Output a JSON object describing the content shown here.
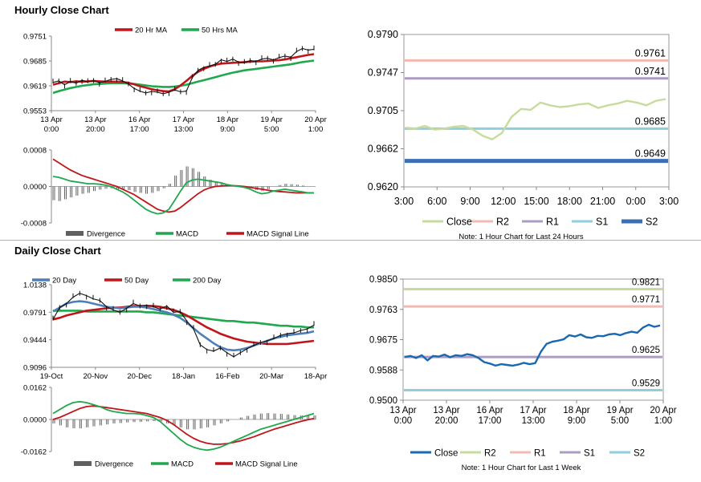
{
  "sections": {
    "hourly_title": "Hourly Close Chart",
    "daily_title": "Daily Close Chart"
  },
  "chart_data": [
    {
      "id": "hourly-price",
      "type": "line",
      "title": "Hourly Close Chart",
      "ylim": [
        0.9553,
        0.9751
      ],
      "yticks": [
        "0.9751",
        "0.9685",
        "0.9619",
        "0.9553"
      ],
      "xticks": [
        [
          "13 Apr",
          "0:00"
        ],
        [
          "13 Apr",
          "20:00"
        ],
        [
          "16 Apr",
          "17:00"
        ],
        [
          "17 Apr",
          "13:00"
        ],
        [
          "18 Apr",
          "9:00"
        ],
        [
          "19 Apr",
          "5:00"
        ],
        [
          "20 Apr",
          "1:00"
        ]
      ],
      "legend": [
        "20 Hr MA",
        "50 Hrs MA"
      ],
      "colors": {
        "price": "#111111",
        "ma20": "#c0161a",
        "ma50": "#21a84f"
      },
      "series": [
        {
          "name": "Price",
          "values": [
            0.9628,
            0.9632,
            0.9622,
            0.963,
            0.9626,
            0.9634,
            0.9629,
            0.9633,
            0.9627,
            0.9631,
            0.9636,
            0.9638,
            0.9632,
            0.9624,
            0.9612,
            0.9605,
            0.96,
            0.9604,
            0.9602,
            0.9598,
            0.9602,
            0.9608,
            0.9603,
            0.9605,
            0.964,
            0.966,
            0.9668,
            0.9672,
            0.9676,
            0.9688,
            0.9684,
            0.969,
            0.9682,
            0.968,
            0.9686,
            0.9684,
            0.969,
            0.9692,
            0.9688,
            0.9694,
            0.9698,
            0.9695,
            0.971,
            0.9718,
            0.9714,
            0.9716
          ]
        },
        {
          "name": "20 Hr MA",
          "values": [
            0.9622,
            0.9626,
            0.963,
            0.9629,
            0.9631,
            0.963,
            0.9631,
            0.9632,
            0.9631,
            0.963,
            0.963,
            0.963,
            0.9629,
            0.9627,
            0.9623,
            0.9618,
            0.9614,
            0.961,
            0.9607,
            0.9605,
            0.9604,
            0.961,
            0.962,
            0.9632,
            0.9645,
            0.9656,
            0.9664,
            0.967,
            0.9675,
            0.9678,
            0.9679,
            0.968,
            0.9681,
            0.9682,
            0.9683,
            0.9684,
            0.9684,
            0.9685,
            0.9686,
            0.9687,
            0.9689,
            0.9692,
            0.9695,
            0.9698,
            0.9701,
            0.9703
          ]
        },
        {
          "name": "50 Hrs MA",
          "values": [
            0.96,
            0.9605,
            0.9609,
            0.9613,
            0.9616,
            0.9619,
            0.9621,
            0.9623,
            0.9624,
            0.9625,
            0.9626,
            0.9626,
            0.9626,
            0.9625,
            0.9624,
            0.9622,
            0.962,
            0.9618,
            0.9617,
            0.9616,
            0.9616,
            0.9617,
            0.9619,
            0.9622,
            0.9626,
            0.963,
            0.9634,
            0.9638,
            0.9642,
            0.9646,
            0.965,
            0.9654,
            0.9657,
            0.966,
            0.9662,
            0.9664,
            0.9666,
            0.9668,
            0.967,
            0.9672,
            0.9674,
            0.9676,
            0.9679,
            0.9682,
            0.9684,
            0.9686
          ]
        }
      ]
    },
    {
      "id": "hourly-macd",
      "type": "line",
      "ylim": [
        -0.0008,
        0.0008
      ],
      "yticks": [
        "0.0008",
        "0.0000",
        "-0.0008"
      ],
      "legend": [
        "Divergence",
        "MACD",
        "MACD Signal Line"
      ],
      "colors": {
        "divergence": "#606060",
        "macd": "#21a84f",
        "signal": "#c0161a"
      },
      "series": [
        {
          "name": "MACD",
          "values": [
            0.00022,
            0.0002,
            0.00016,
            0.00012,
            0.0001,
            8e-05,
            6e-05,
            6e-05,
            5e-05,
            3e-05,
            0.0,
            -6e-05,
            -0.00012,
            -0.0002,
            -0.0003,
            -0.0004,
            -0.0005,
            -0.00056,
            -0.0006,
            -0.00058,
            -0.0005,
            -0.0003,
            -0.0001,
            8e-05,
            0.00014,
            0.00016,
            0.00014,
            0.00012,
            0.0001,
            8e-05,
            4e-05,
            2e-05,
            0.0,
            -2e-05,
            -6e-05,
            -0.00012,
            -0.00016,
            -0.00014,
            -0.0001,
            -8e-05,
            -6e-05,
            -8e-05,
            -0.0001,
            -0.00012,
            -0.00014,
            -0.00014
          ]
        },
        {
          "name": "MACD Signal Line",
          "values": [
            0.0006,
            0.00052,
            0.00044,
            0.00036,
            0.0003,
            0.00024,
            0.0002,
            0.00016,
            0.00012,
            8e-05,
            4e-05,
            0.0,
            -6e-05,
            -0.00012,
            -0.00018,
            -0.00026,
            -0.00034,
            -0.00042,
            -0.0005,
            -0.00054,
            -0.00056,
            -0.00054,
            -0.00046,
            -0.00036,
            -0.00026,
            -0.00016,
            -8e-05,
            -3e-05,
            0.0,
            1e-05,
            2e-05,
            2e-05,
            1e-05,
            0.0,
            -2e-05,
            -4e-05,
            -6e-05,
            -8e-05,
            -0.0001,
            -0.00011,
            -0.00012,
            -0.00013,
            -0.00014,
            -0.00014,
            -0.00014,
            -0.00014
          ]
        },
        {
          "name": "Divergence",
          "values": [
            -0.0003,
            -0.00032,
            -0.00028,
            -0.00024,
            -0.0002,
            -0.00016,
            -0.00014,
            -0.0001,
            -7e-05,
            -5e-05,
            -4e-05,
            -6e-05,
            -6e-05,
            -8e-05,
            -0.00012,
            -0.00014,
            -0.00016,
            -0.00014,
            -0.0001,
            -4e-05,
            6e-05,
            0.00024,
            0.00036,
            0.00044,
            0.0004,
            0.00032,
            0.00022,
            0.00015,
            0.0001,
            7e-05,
            2e-05,
            0.0,
            -1e-05,
            -2e-05,
            -4e-05,
            -8e-05,
            -0.0001,
            -6e-05,
            0.0,
            3e-05,
            6e-05,
            5e-05,
            4e-05,
            2e-05,
            0.0,
            0.0
          ]
        }
      ]
    },
    {
      "id": "hourly-levels",
      "type": "line",
      "ylim": [
        0.962,
        0.979
      ],
      "yticks": [
        "0.9790",
        "0.9747",
        "0.9705",
        "0.9662",
        "0.9620"
      ],
      "xticks": [
        "3:00",
        "6:00",
        "9:00",
        "12:00",
        "15:00",
        "18:00",
        "21:00",
        "0:00",
        "3:00"
      ],
      "legend": [
        "Close",
        "R2",
        "R1",
        "S1",
        "S2"
      ],
      "note": "Note: 1 Hour Chart for Last 24 Hours",
      "levels": [
        {
          "name": "R2",
          "value": 0.9761,
          "label": "0.9761",
          "color": "#f4b9b0"
        },
        {
          "name": "R1",
          "value": 0.9741,
          "label": "0.9741",
          "color": "#ac9cc4"
        },
        {
          "name": "S1",
          "value": 0.9685,
          "label": "0.9685",
          "color": "#8fcedf"
        },
        {
          "name": "S2",
          "value": 0.9649,
          "label": "0.9649",
          "color": "#3c6fb4"
        }
      ],
      "series": [
        {
          "name": "Close",
          "color": "#c5dc9c",
          "values": [
            0.9686,
            0.9685,
            0.9688,
            0.9684,
            0.9685,
            0.9687,
            0.9688,
            0.9684,
            0.9677,
            0.9673,
            0.968,
            0.9698,
            0.9707,
            0.9706,
            0.9714,
            0.9711,
            0.9709,
            0.971,
            0.9712,
            0.9713,
            0.9708,
            0.9711,
            0.9713,
            0.9716,
            0.9714,
            0.9711,
            0.9716,
            0.9718
          ]
        }
      ]
    },
    {
      "id": "daily-price",
      "type": "line",
      "title": "Daily Close Chart",
      "ylim": [
        0.9096,
        1.0138
      ],
      "yticks": [
        "1.0138",
        "0.9791",
        "0.9444",
        "0.9096"
      ],
      "xticks": [
        "19-Oct",
        "20-Nov",
        "20-Dec",
        "18-Jan",
        "16-Feb",
        "20-Mar",
        "18-Apr"
      ],
      "legend": [
        "20 Day",
        "50 Day",
        "200 Day"
      ],
      "colors": {
        "price": "#111111",
        "ma20": "#4f7fbb",
        "ma50": "#c0161a",
        "ma200": "#21a84f"
      },
      "series": [
        {
          "name": "Price",
          "values": [
            0.97,
            0.985,
            0.99,
            0.998,
            1.003,
            1.0,
            0.996,
            0.994,
            0.986,
            0.982,
            0.979,
            0.984,
            0.99,
            0.987,
            0.988,
            0.986,
            0.983,
            0.987,
            0.979,
            0.98,
            0.968,
            0.958,
            0.938,
            0.932,
            0.93,
            0.934,
            0.928,
            0.923,
            0.928,
            0.933,
            0.937,
            0.941,
            0.943,
            0.946,
            0.95,
            0.952,
            0.953,
            0.956,
            0.958,
            0.963
          ]
        },
        {
          "name": "20 Day",
          "values": [
            0.98,
            0.985,
            0.99,
            0.992,
            0.993,
            0.992,
            0.99,
            0.988,
            0.986,
            0.985,
            0.984,
            0.985,
            0.986,
            0.986,
            0.985,
            0.983,
            0.981,
            0.979,
            0.976,
            0.972,
            0.966,
            0.959,
            0.952,
            0.946,
            0.94,
            0.935,
            0.932,
            0.931,
            0.932,
            0.934,
            0.937,
            0.94,
            0.943,
            0.946,
            0.948,
            0.95,
            0.951,
            0.952,
            0.953,
            0.955
          ]
        },
        {
          "name": "50 Day",
          "values": [
            0.97,
            0.972,
            0.975,
            0.977,
            0.979,
            0.981,
            0.982,
            0.983,
            0.984,
            0.985,
            0.985,
            0.986,
            0.987,
            0.987,
            0.987,
            0.987,
            0.986,
            0.984,
            0.982,
            0.979,
            0.975,
            0.97,
            0.965,
            0.96,
            0.956,
            0.952,
            0.949,
            0.946,
            0.944,
            0.942,
            0.941,
            0.94,
            0.939,
            0.939,
            0.939,
            0.939,
            0.94,
            0.941,
            0.942,
            0.943
          ]
        },
        {
          "name": "200 Day",
          "values": [
            0.981,
            0.981,
            0.981,
            0.981,
            0.981,
            0.98,
            0.98,
            0.98,
            0.98,
            0.98,
            0.98,
            0.98,
            0.98,
            0.98,
            0.979,
            0.979,
            0.978,
            0.977,
            0.976,
            0.975,
            0.974,
            0.973,
            0.972,
            0.971,
            0.97,
            0.969,
            0.968,
            0.968,
            0.967,
            0.966,
            0.966,
            0.965,
            0.964,
            0.963,
            0.962,
            0.962,
            0.961,
            0.961,
            0.96,
            0.96
          ]
        }
      ]
    },
    {
      "id": "daily-macd",
      "type": "line",
      "ylim": [
        -0.0162,
        0.0162
      ],
      "yticks": [
        "0.0162",
        "0.0000",
        "-0.0162"
      ],
      "legend": [
        "Divergence",
        "MACD",
        "MACD Signal Line"
      ],
      "colors": {
        "divergence": "#606060",
        "macd": "#21a84f",
        "signal": "#c0161a"
      },
      "series": [
        {
          "name": "MACD",
          "values": [
            0.003,
            0.005,
            0.007,
            0.0085,
            0.009,
            0.0085,
            0.0075,
            0.0065,
            0.005,
            0.004,
            0.0035,
            0.003,
            0.003,
            0.0028,
            0.002,
            0.001,
            -0.001,
            -0.004,
            -0.007,
            -0.01,
            -0.0125,
            -0.014,
            -0.015,
            -0.0155,
            -0.015,
            -0.014,
            -0.0125,
            -0.011,
            -0.0095,
            -0.008,
            -0.0065,
            -0.005,
            -0.004,
            -0.003,
            -0.002,
            -0.001,
            0.0,
            0.001,
            0.002,
            0.003
          ]
        },
        {
          "name": "MACD Signal Line",
          "values": [
            0.0,
            0.001,
            0.0025,
            0.004,
            0.0055,
            0.0065,
            0.0068,
            0.0065,
            0.006,
            0.0055,
            0.005,
            0.0045,
            0.004,
            0.0035,
            0.003,
            0.002,
            0.001,
            -0.0005,
            -0.0025,
            -0.005,
            -0.0075,
            -0.0095,
            -0.011,
            -0.012,
            -0.0125,
            -0.0125,
            -0.0122,
            -0.0116,
            -0.0108,
            -0.0098,
            -0.0088,
            -0.0075,
            -0.0062,
            -0.005,
            -0.004,
            -0.003,
            -0.002,
            -0.001,
            -0.0002,
            0.0005
          ]
        },
        {
          "name": "Divergence",
          "values": [
            -0.002,
            -0.003,
            -0.004,
            -0.0045,
            -0.0045,
            -0.004,
            -0.0035,
            -0.003,
            -0.0025,
            -0.002,
            -0.0018,
            -0.0015,
            -0.0013,
            -0.0012,
            -0.001,
            -0.0008,
            -0.001,
            -0.002,
            -0.003,
            -0.004,
            -0.005,
            -0.005,
            -0.0045,
            -0.004,
            -0.003,
            -0.002,
            -0.001,
            0.0,
            0.001,
            0.0018,
            0.0025,
            0.003,
            0.0032,
            0.003,
            0.0028,
            0.0025,
            0.0022,
            0.002,
            0.002,
            0.002
          ]
        }
      ]
    },
    {
      "id": "daily-levels",
      "type": "line",
      "ylim": [
        0.95,
        0.985
      ],
      "yticks": [
        "0.9850",
        "0.9763",
        "0.9675",
        "0.9588",
        "0.9500"
      ],
      "xticks": [
        [
          "13 Apr",
          "0:00"
        ],
        [
          "13 Apr",
          "20:00"
        ],
        [
          "16 Apr",
          "17:00"
        ],
        [
          "17 Apr",
          "13:00"
        ],
        [
          "18 Apr",
          "9:00"
        ],
        [
          "19 Apr",
          "5:00"
        ],
        [
          "20 Apr",
          "1:00"
        ]
      ],
      "legend": [
        "Close",
        "R2",
        "R1",
        "S1",
        "S2"
      ],
      "note": "Note: 1 Hour Chart for Last 1 Week",
      "levels": [
        {
          "name": "R2",
          "value": 0.9821,
          "label": "0.9821",
          "color": "#c5dc9c"
        },
        {
          "name": "R1",
          "value": 0.9771,
          "label": "0.9771",
          "color": "#f4b9b0"
        },
        {
          "name": "S1",
          "value": 0.9625,
          "label": "0.9625",
          "color": "#ac9cc4"
        },
        {
          "name": "S2",
          "value": 0.9529,
          "label": "0.9529",
          "color": "#8fcedf"
        }
      ],
      "series": [
        {
          "name": "Close",
          "color": "#1a68b0",
          "values": [
            0.9625,
            0.9628,
            0.9622,
            0.963,
            0.9615,
            0.9628,
            0.9626,
            0.9632,
            0.9624,
            0.963,
            0.9628,
            0.9633,
            0.963,
            0.9622,
            0.961,
            0.9606,
            0.96,
            0.9604,
            0.9602,
            0.96,
            0.9603,
            0.9608,
            0.9604,
            0.9607,
            0.964,
            0.9663,
            0.9669,
            0.9672,
            0.9676,
            0.9688,
            0.9684,
            0.969,
            0.9682,
            0.968,
            0.9686,
            0.9685,
            0.969,
            0.9692,
            0.9688,
            0.9694,
            0.9698,
            0.9695,
            0.971,
            0.9718,
            0.9712,
            0.9716
          ]
        }
      ]
    }
  ]
}
